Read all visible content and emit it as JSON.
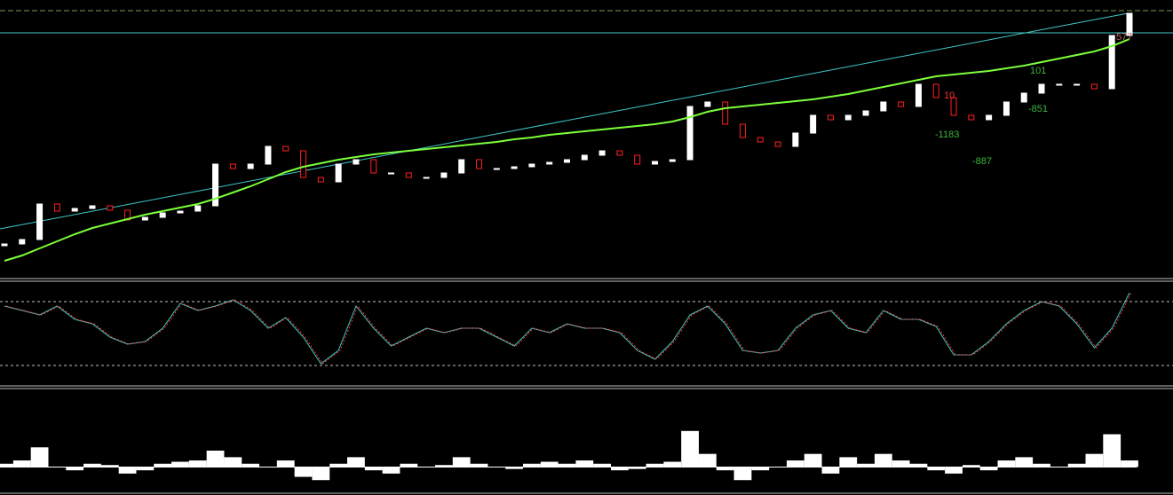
{
  "chart_data": [
    {
      "type": "candlestick",
      "annotations": [
        "101",
        "-851",
        "-1183",
        "-887",
        "577",
        "10"
      ],
      "open": [
        35,
        37,
        42,
        82,
        74,
        77,
        80,
        75,
        64,
        67,
        72,
        74,
        80,
        127,
        122,
        127,
        147,
        142,
        112,
        107,
        127,
        132,
        117,
        117,
        112,
        112,
        117,
        132,
        122,
        122,
        124,
        127,
        129,
        132,
        137,
        142,
        137,
        127,
        130,
        132,
        192,
        197,
        172,
        157,
        152,
        147,
        162,
        182,
        177,
        182,
        187,
        197,
        192,
        217,
        202,
        182,
        177,
        182,
        197,
        207,
        217,
        217,
        217,
        212,
        272
      ],
      "close": [
        37,
        42,
        82,
        74,
        77,
        80,
        75,
        64,
        67,
        72,
        74,
        80,
        127,
        122,
        127,
        147,
        142,
        112,
        107,
        127,
        132,
        117,
        117,
        112,
        112,
        117,
        132,
        122,
        122,
        124,
        127,
        129,
        132,
        137,
        142,
        137,
        127,
        130,
        132,
        192,
        197,
        172,
        157,
        152,
        147,
        162,
        182,
        177,
        182,
        187,
        197,
        192,
        217,
        202,
        182,
        177,
        182,
        197,
        207,
        217,
        217,
        217,
        212,
        272,
        297
      ],
      "ma": [
        18,
        24,
        32,
        40,
        48,
        55,
        60,
        65,
        70,
        74,
        78,
        82,
        88,
        95,
        102,
        110,
        118,
        124,
        128,
        132,
        135,
        138,
        140,
        142,
        144,
        146,
        148,
        150,
        152,
        155,
        157,
        160,
        162,
        164,
        166,
        168,
        170,
        172,
        175,
        180,
        186,
        190,
        192,
        194,
        196,
        198,
        200,
        203,
        206,
        210,
        214,
        218,
        222,
        226,
        228,
        230,
        232,
        235,
        238,
        242,
        246,
        250,
        254,
        260,
        268
      ],
      "ylim": [
        0,
        312
      ],
      "color_up": "#ffffff",
      "color_down": "#ff2020",
      "ma_color": "#7cff3a"
    },
    {
      "type": "line",
      "values": [
        90,
        85,
        80,
        90,
        75,
        70,
        55,
        47,
        50,
        65,
        93,
        85,
        90,
        97,
        85,
        65,
        77,
        55,
        25,
        40,
        90,
        65,
        45,
        55,
        65,
        60,
        65,
        65,
        55,
        45,
        65,
        60,
        70,
        65,
        65,
        60,
        40,
        30,
        50,
        80,
        90,
        70,
        40,
        37,
        40,
        65,
        80,
        85,
        65,
        60,
        85,
        75,
        75,
        67,
        35,
        35,
        50,
        70,
        85,
        95,
        90,
        70,
        43,
        65,
        105
      ],
      "ylim": [
        0,
        117
      ],
      "levels": [
        95,
        23
      ],
      "color": "#40c8c8"
    },
    {
      "type": "bar",
      "values": [
        5,
        10,
        30,
        0,
        -5,
        5,
        3,
        -10,
        -5,
        5,
        8,
        10,
        25,
        15,
        5,
        0,
        10,
        -15,
        -20,
        5,
        15,
        -5,
        -10,
        5,
        0,
        3,
        15,
        5,
        0,
        -3,
        5,
        8,
        5,
        10,
        5,
        -5,
        -3,
        5,
        8,
        55,
        20,
        -5,
        -20,
        -5,
        0,
        10,
        20,
        -10,
        15,
        5,
        20,
        10,
        5,
        -5,
        -10,
        3,
        -5,
        10,
        15,
        5,
        0,
        5,
        20,
        50,
        10
      ],
      "ylim": [
        -40,
        117
      ],
      "color": "#ffffff"
    }
  ]
}
